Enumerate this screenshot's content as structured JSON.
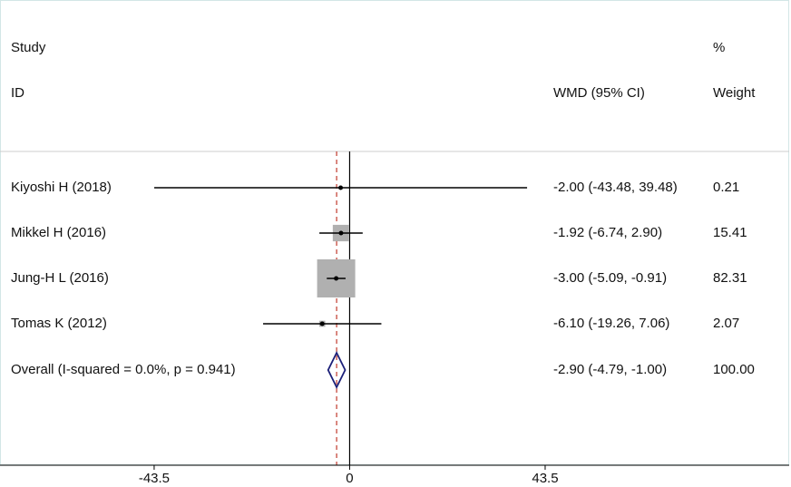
{
  "chart_data": {
    "type": "forest",
    "headers": {
      "study": "Study",
      "id": "ID",
      "effect": "WMD (95% CI)",
      "pct": "%",
      "weight": "Weight"
    },
    "studies": {
      "labels": [
        "Kiyoshi H (2018)",
        "Mikkel H (2016)",
        "Jung-H L (2016)",
        "Tomas K (2012)"
      ],
      "estimates": [
        -2.0,
        -1.92,
        -3.0,
        -6.1
      ],
      "lower": [
        -43.48,
        -6.74,
        -5.09,
        -19.26
      ],
      "upper": [
        39.48,
        2.9,
        -0.91,
        7.06
      ],
      "value_labels": [
        "-2.00 (-43.48, 39.48)",
        "-1.92 (-6.74, 2.90)",
        "-3.00 (-5.09, -0.91)",
        "-6.10 (-19.26, 7.06)"
      ],
      "weights": [
        0.21,
        15.41,
        82.31,
        2.07
      ]
    },
    "overall": {
      "label": "Overall  (I-squared = 0.0%, p = 0.941)",
      "estimate": -2.9,
      "lower": -4.79,
      "upper": -1.0,
      "value_label": "-2.90 (-4.79, -1.00)",
      "weight": {
        "value": 100,
        "label": "100.00"
      }
    },
    "xlim": [
      -77.8,
      97.8
    ],
    "xticks": [
      -43.5,
      0,
      43.5
    ],
    "box_color": "#b0b0b0",
    "diamond_color": "#1b1f78",
    "reference_color": "#c0392b"
  }
}
